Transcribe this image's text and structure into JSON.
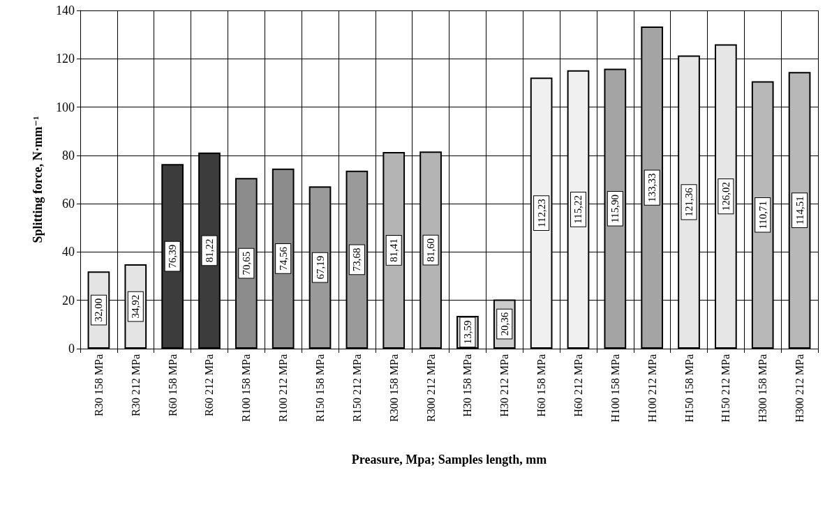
{
  "chart_data": {
    "type": "bar",
    "xlabel": "Preasure, Mpa; Samples length, mm",
    "ylabel": "Splitting force, N·mm⁻¹",
    "categories": [
      "R30 158 MPa",
      "R30 212 MPa",
      "R60 158 MPa",
      "R60 212 MPa",
      "R100 158 MPa",
      "R100 212 MPa",
      "R150 158 MPa",
      "R150 212 MPa",
      "R300 158 MPa",
      "R300 212 MPa",
      "H30 158 MPa",
      "H30 212 MPa",
      "H60 158 MPa",
      "H60 212 MPa",
      "H100 158 MPa",
      "H100 212 MPa",
      "H150 158 MPa",
      "H150 212 MPa",
      "H300 158 MPa",
      "H300 212 MPa"
    ],
    "values": [
      32.0,
      34.92,
      76.39,
      81.22,
      70.65,
      74.56,
      67.19,
      73.68,
      81.41,
      81.6,
      13.59,
      20.36,
      112.23,
      115.22,
      115.9,
      133.33,
      121.36,
      126.02,
      110.71,
      114.51
    ],
    "value_labels": [
      "32,00",
      "34,92",
      "76,39",
      "81,22",
      "70,65",
      "74,56",
      "67,19",
      "73,68",
      "81,41",
      "81,60",
      "13,59",
      "20,36",
      "112,23",
      "115,22",
      "115,90",
      "133,33",
      "121,36",
      "126,02",
      "110,71",
      "114,51"
    ],
    "colors": [
      "#e4e4e4",
      "#e4e4e4",
      "#3c3c3c",
      "#3c3c3c",
      "#8c8c8c",
      "#8c8c8c",
      "#9a9a9a",
      "#9a9a9a",
      "#b4b4b4",
      "#b4b4b4",
      "#cccccc",
      "#cccccc",
      "#f0f0f0",
      "#f0f0f0",
      "#a4a4a4",
      "#a4a4a4",
      "#e6e6e6",
      "#e6e6e6",
      "#b8b8b8",
      "#b8b8b8"
    ],
    "ylim": [
      0,
      140
    ],
    "yticks": [
      0,
      20,
      40,
      60,
      80,
      100,
      120,
      140
    ],
    "grid": true
  }
}
